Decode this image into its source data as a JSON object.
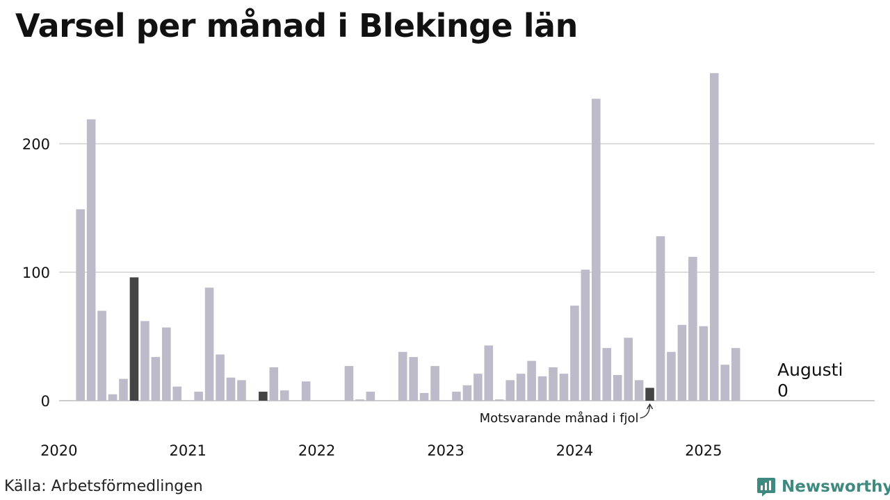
{
  "chart_data": {
    "type": "bar",
    "title": "Varsel per månad i Blekinge län",
    "xlabel": "",
    "ylabel": "",
    "ylim": [
      0,
      255
    ],
    "yticks": [
      0,
      100,
      200
    ],
    "year_labels": [
      "2020",
      "2021",
      "2022",
      "2023",
      "2024",
      "2025"
    ],
    "start_month": "2020-01",
    "categories": [
      "2020-01",
      "2020-02",
      "2020-03",
      "2020-04",
      "2020-05",
      "2020-06",
      "2020-07",
      "2020-08",
      "2020-09",
      "2020-10",
      "2020-11",
      "2020-12",
      "2021-01",
      "2021-02",
      "2021-03",
      "2021-04",
      "2021-05",
      "2021-06",
      "2021-07",
      "2021-08",
      "2021-09",
      "2021-10",
      "2021-11",
      "2021-12",
      "2022-01",
      "2022-02",
      "2022-03",
      "2022-04",
      "2022-05",
      "2022-06",
      "2022-07",
      "2022-08",
      "2022-09",
      "2022-10",
      "2022-11",
      "2022-12",
      "2023-01",
      "2023-02",
      "2023-03",
      "2023-04",
      "2023-05",
      "2023-06",
      "2023-07",
      "2023-08",
      "2023-09",
      "2023-10",
      "2023-11",
      "2023-12",
      "2024-01",
      "2024-02",
      "2024-03",
      "2024-04",
      "2024-05",
      "2024-06",
      "2024-07",
      "2024-08",
      "2024-09",
      "2024-10",
      "2024-11",
      "2024-12",
      "2025-01",
      "2025-02",
      "2025-03",
      "2025-04",
      "2025-05",
      "2025-06",
      "2025-07",
      "2025-08"
    ],
    "values": [
      0,
      0,
      149,
      219,
      70,
      5,
      17,
      96,
      62,
      34,
      57,
      11,
      0,
      7,
      88,
      36,
      18,
      16,
      0,
      7,
      26,
      8,
      0,
      15,
      0,
      0,
      0,
      27,
      1,
      7,
      0,
      0,
      38,
      34,
      6,
      27,
      0,
      7,
      12,
      21,
      43,
      1,
      16,
      21,
      31,
      19,
      26,
      21,
      74,
      102,
      235,
      41,
      20,
      49,
      16,
      10,
      128,
      38,
      59,
      112,
      58,
      255,
      28,
      41,
      0,
      0,
      0,
      0
    ],
    "highlighted": [
      "2020-08",
      "2021-08",
      "2024-08"
    ],
    "colors": {
      "bar": "#bdbbc9",
      "highlight": "#444444",
      "grid": "#dddddd",
      "axis": "#cccccc"
    },
    "callout": {
      "label": "Augusti",
      "value": "0"
    },
    "annotation": "Motsvarande månad i fjol",
    "grid": true,
    "legend": "none"
  },
  "footer": {
    "source": "Källa: Arbetsförmedlingen",
    "brand": "Newsworthy",
    "brand_icon": "newsworthy-logo-icon"
  }
}
